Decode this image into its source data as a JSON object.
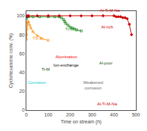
{
  "chart_data": {
    "type": "line",
    "xlabel": "Time on stream (h)",
    "ylabel": "Cyclohexanone conv. (%)",
    "xlim": [
      0,
      500
    ],
    "ylim": [
      0,
      105
    ],
    "xticks": [
      0,
      100,
      200,
      300,
      400,
      500
    ],
    "yticks": [
      0,
      20,
      40,
      60,
      80,
      100
    ],
    "grid": false,
    "series": [
      {
        "color": "#FF8C00",
        "marker": "circle-open",
        "x": [
          0,
          1,
          2,
          3,
          5,
          8,
          10,
          15,
          20,
          30,
          50,
          70,
          100
        ],
        "values": [
          75,
          80,
          86,
          90,
          93,
          94,
          93,
          90,
          87,
          83,
          79,
          76,
          74
        ]
      },
      {
        "color": "#228B22",
        "marker": "square-open",
        "x": [
          0,
          5,
          10,
          30,
          60,
          100,
          130,
          150,
          160,
          170,
          175,
          180,
          190,
          200,
          210,
          220,
          230,
          250
        ],
        "values": [
          97,
          99,
          99,
          99,
          99,
          99,
          99,
          99,
          98,
          96,
          94,
          92,
          90,
          88,
          87,
          86,
          85,
          84
        ]
      },
      {
        "color": "#CC0000",
        "marker": "diamond",
        "x": [
          0,
          5,
          10,
          50,
          100,
          150,
          200,
          250,
          300,
          350,
          400,
          410,
          420,
          430,
          440,
          450,
          460,
          470,
          480
        ],
        "values": [
          99,
          100,
          100,
          100,
          100,
          100,
          100,
          100,
          100,
          100,
          100,
          99,
          99,
          99,
          98,
          98,
          97,
          91,
          80
        ]
      }
    ],
    "annotations": [
      {
        "text": "TS-1",
        "x": 22,
        "y": 73,
        "color": "#FF8C00"
      },
      {
        "text": "Ti-M",
        "x": 170,
        "y": 82,
        "color": "#228B22"
      },
      {
        "text": "Al-Ti-M-Na",
        "x": 330,
        "y": 102,
        "color": "#CC0000"
      },
      {
        "text": "Ti-M",
        "x": 90,
        "y": 40,
        "color": "#004400"
      },
      {
        "text": "Alumination",
        "x": 182.5,
        "y": 53,
        "color": "red"
      },
      {
        "text": "Ion-exchange",
        "x": 182.5,
        "y": 44,
        "color": "black"
      },
      {
        "text": "Al-rich",
        "x": 370,
        "y": 84.5,
        "color": "#CC0000"
      },
      {
        "text": "Al-poor",
        "x": 362,
        "y": 46,
        "color": "#115511"
      },
      {
        "text": "Al-Ti-M-Na",
        "x": 370,
        "y": 3,
        "color": "#CC0000"
      },
      {
        "text": "Corrosion",
        "x": 48,
        "y": 26,
        "color": "#00CCCC"
      },
      {
        "text": "Weakened\ncorrosion",
        "x": 305,
        "y": 20,
        "color": "#666666"
      }
    ]
  }
}
